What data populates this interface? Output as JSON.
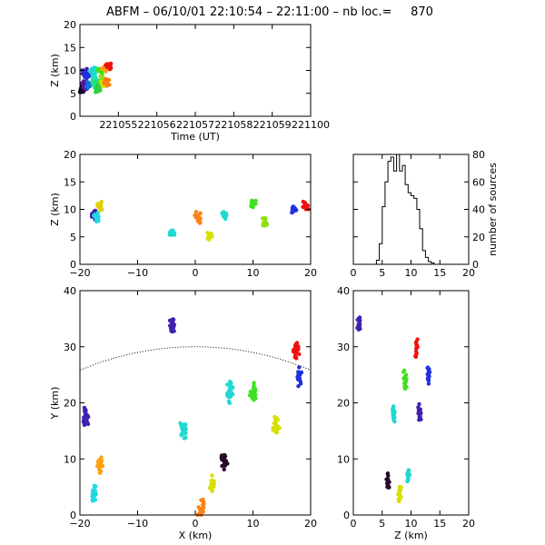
{
  "title": "ABFM – 06/10/01 22:10:54 – 22:11:00 – nb loc.=     870",
  "chart_data": [
    {
      "id": "time_height",
      "type": "scatter",
      "xlabel": "Time (UT)",
      "ylabel": "Z (km)",
      "xlim": [
        221054,
        221100
      ],
      "ylim": [
        0,
        20
      ],
      "xtick_labels": [
        "221055",
        "221056",
        "221057",
        "221058",
        "221059",
        "221100"
      ],
      "ytick_labels": [
        "0",
        "5",
        "10",
        "15",
        "20"
      ],
      "color_by": "time (black → violet → blue → cyan → green → yellow → orange → red)",
      "clusters": [
        {
          "t": 221054.2,
          "z": 5.5,
          "color": "#2a0a2a"
        },
        {
          "t": 221054.6,
          "z": 6.0,
          "color": "#1e0840"
        },
        {
          "t": 221054.9,
          "z": 6.8,
          "color": "#5a149a"
        },
        {
          "t": 221055.1,
          "z": 9.5,
          "color": "#4020b0"
        },
        {
          "t": 221055.3,
          "z": 9.0,
          "color": "#2030e0"
        },
        {
          "t": 221055.8,
          "z": 6.5,
          "color": "#1070e0"
        },
        {
          "t": 221056.5,
          "z": 10.0,
          "color": "#20d8d0"
        },
        {
          "t": 221056.8,
          "z": 8.0,
          "color": "#20e0b0"
        },
        {
          "t": 221057.2,
          "z": 7.0,
          "color": "#20e070"
        },
        {
          "t": 221057.6,
          "z": 6.0,
          "color": "#30d040"
        },
        {
          "t": 221058.0,
          "z": 10.0,
          "color": "#40e020"
        },
        {
          "t": 221058.4,
          "z": 8.0,
          "color": "#90e010"
        },
        {
          "t": 221058.7,
          "z": 7.0,
          "color": "#d8e000"
        },
        {
          "t": 221059.1,
          "z": 10.5,
          "color": "#ffa010"
        },
        {
          "t": 221059.4,
          "z": 7.5,
          "color": "#ff8010"
        },
        {
          "t": 221059.7,
          "z": 11.0,
          "color": "#f01010"
        }
      ]
    },
    {
      "id": "x_height",
      "type": "scatter",
      "xlabel": "",
      "ylabel": "Z (km)",
      "xlim": [
        -20,
        20
      ],
      "ylim": [
        0,
        20
      ],
      "xtick_labels": [
        "−20",
        "−10",
        "0",
        "10",
        "20"
      ],
      "ytick_labels": [
        "0",
        "5",
        "10",
        "15",
        "20"
      ],
      "clusters": [
        {
          "x": -17.5,
          "z": 9.0,
          "color": "#4020b0"
        },
        {
          "x": -16.5,
          "z": 10.5,
          "color": "#e0d000"
        },
        {
          "x": -17.0,
          "z": 8.5,
          "color": "#20d8e0"
        },
        {
          "x": -4.0,
          "z": 5.5,
          "color": "#20d8d0"
        },
        {
          "x": 0.5,
          "z": 8.5,
          "color": "#ff8010"
        },
        {
          "x": 2.5,
          "z": 5.0,
          "color": "#d8e000"
        },
        {
          "x": 5.0,
          "z": 9.0,
          "color": "#20d8d0"
        },
        {
          "x": 10.0,
          "z": 11.0,
          "color": "#40e020"
        },
        {
          "x": 12.0,
          "z": 7.5,
          "color": "#90e010"
        },
        {
          "x": 17.0,
          "z": 10.0,
          "color": "#2030e0"
        },
        {
          "x": 19.0,
          "z": 10.5,
          "color": "#f01010"
        }
      ]
    },
    {
      "id": "height_histogram",
      "type": "line",
      "xlabel": "",
      "ylabel": "number of sources",
      "xlim": [
        0,
        20
      ],
      "ylim": [
        0,
        80
      ],
      "xtick_labels": [
        "0",
        "5",
        "10",
        "15",
        "20"
      ],
      "ytick_labels": [
        "0",
        "20",
        "40",
        "60",
        "80"
      ],
      "x": [
        4.0,
        4.5,
        5.0,
        5.5,
        6.0,
        6.5,
        7.0,
        7.5,
        8.0,
        8.5,
        9.0,
        9.5,
        10.0,
        10.5,
        11.0,
        11.5,
        12.0,
        12.5,
        13.0,
        13.5,
        14.0
      ],
      "values": [
        3,
        15,
        42,
        60,
        75,
        78,
        68,
        80,
        68,
        72,
        58,
        52,
        50,
        48,
        40,
        26,
        10,
        5,
        2,
        1,
        0
      ]
    },
    {
      "id": "plan_view",
      "type": "scatter",
      "xlabel": "X (km)",
      "ylabel": "Y (km)",
      "xlim": [
        -20,
        20
      ],
      "ylim": [
        0,
        40
      ],
      "xtick_labels": [
        "−20",
        "−10",
        "0",
        "10",
        "20"
      ],
      "ytick_labels": [
        "0",
        "10",
        "20",
        "30",
        "40"
      ],
      "range_arc": {
        "center_x": 0,
        "center_y": -20,
        "radius": 50
      },
      "clusters": [
        {
          "x": -4.0,
          "y": 34.0,
          "color": "#4020b0"
        },
        {
          "x": -19.0,
          "y": 17.5,
          "color": "#4020b0"
        },
        {
          "x": -16.5,
          "y": 9.0,
          "color": "#ffa010"
        },
        {
          "x": -17.5,
          "y": 3.5,
          "color": "#20d8e0"
        },
        {
          "x": -2.0,
          "y": 15.0,
          "color": "#20d8d0"
        },
        {
          "x": 1.0,
          "y": 1.0,
          "color": "#ff8010"
        },
        {
          "x": 3.0,
          "y": 5.0,
          "color": "#d8e000"
        },
        {
          "x": 5.0,
          "y": 10.0,
          "color": "#2a0a2a"
        },
        {
          "x": 6.0,
          "y": 22.0,
          "color": "#20d8d0"
        },
        {
          "x": 10.0,
          "y": 22.0,
          "color": "#40e020"
        },
        {
          "x": 14.0,
          "y": 16.0,
          "color": "#d8e000"
        },
        {
          "x": 17.5,
          "y": 29.5,
          "color": "#f01010"
        },
        {
          "x": 18.0,
          "y": 25.0,
          "color": "#2030e0"
        }
      ]
    },
    {
      "id": "z_y_view",
      "type": "scatter",
      "xlabel": "Z (km)",
      "ylabel": "",
      "xlim": [
        0,
        20
      ],
      "ylim": [
        0,
        40
      ],
      "xtick_labels": [
        "0",
        "5",
        "10",
        "15",
        "20"
      ],
      "ytick_labels": [
        "0",
        "10",
        "20",
        "30",
        "40"
      ],
      "clusters": [
        {
          "z": 1.0,
          "y": 34.0,
          "color": "#4020b0"
        },
        {
          "z": 6.0,
          "y": 6.0,
          "color": "#2a0a2a"
        },
        {
          "z": 8.0,
          "y": 4.0,
          "color": "#d8e000"
        },
        {
          "z": 9.5,
          "y": 7.0,
          "color": "#20d8d0"
        },
        {
          "z": 7.0,
          "y": 18.0,
          "color": "#20d8d0"
        },
        {
          "z": 9.0,
          "y": 24.0,
          "color": "#40e020"
        },
        {
          "z": 13.0,
          "y": 25.0,
          "color": "#2030e0"
        },
        {
          "z": 11.0,
          "y": 29.5,
          "color": "#f01010"
        },
        {
          "z": 11.5,
          "y": 18.0,
          "color": "#4020b0"
        }
      ]
    }
  ]
}
